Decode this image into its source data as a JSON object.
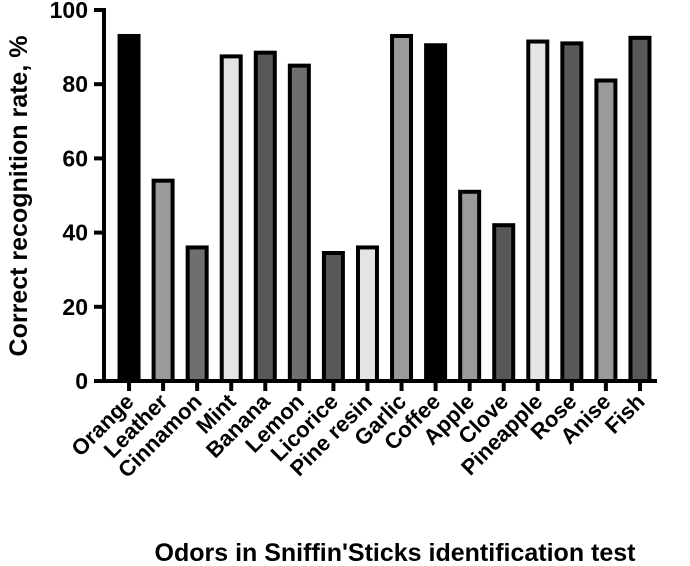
{
  "chart_data": {
    "type": "bar",
    "title": "",
    "xlabel": "Odors in Sniffin'Sticks identification test",
    "ylabel": "Correct recognition rate, %",
    "ylim": [
      0,
      100
    ],
    "yticks": [
      0,
      20,
      40,
      60,
      80,
      100
    ],
    "grid": false,
    "categories": [
      "Orange",
      "Leather",
      "Cinnamon",
      "Mint",
      "Banana",
      "Lemon",
      "Licorice",
      "Pine resin",
      "Garlic",
      "Coffee",
      "Apple",
      "Clove",
      "Pineapple",
      "Rose",
      "Anise",
      "Fish"
    ],
    "values": [
      93,
      54,
      36,
      87.5,
      88.5,
      85,
      34.5,
      36,
      93,
      90.5,
      51,
      42,
      91.5,
      91,
      81,
      92.5
    ],
    "colors": [
      "#000000",
      "#9a9a9a",
      "#6f6f6f",
      "#e4e4e4",
      "#585858",
      "#6f6f6f",
      "#585858",
      "#e4e4e4",
      "#9a9a9a",
      "#000000",
      "#9a9a9a",
      "#585858",
      "#e4e4e4",
      "#585858",
      "#9a9a9a",
      "#585858"
    ]
  }
}
